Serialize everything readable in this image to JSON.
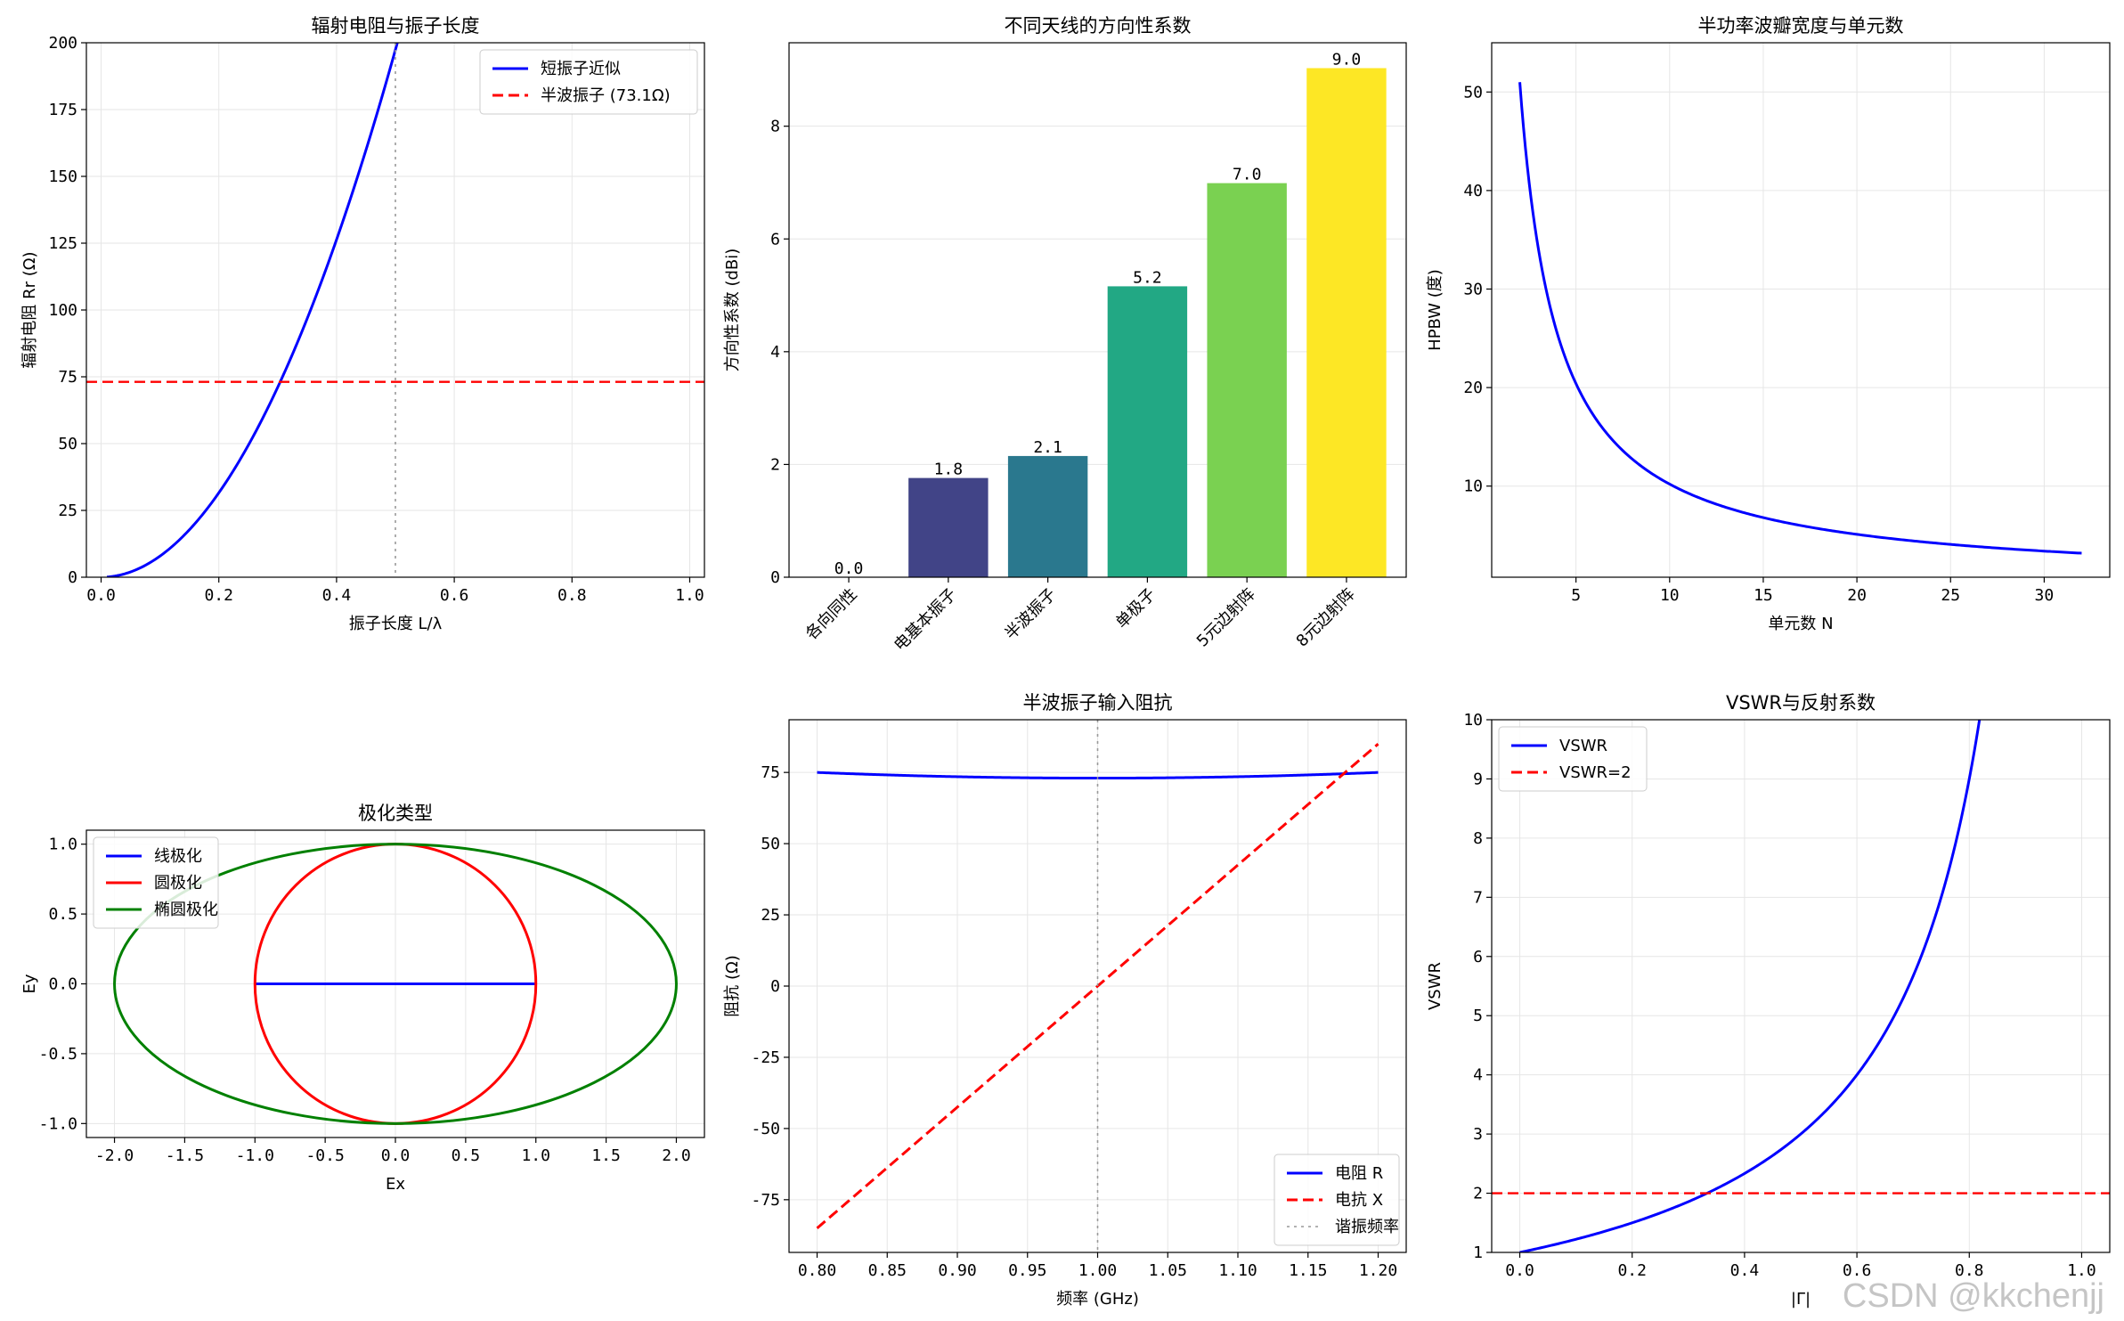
{
  "chart_data": [
    {
      "id": "p1",
      "type": "line",
      "title": "辐射电阻与振子长度",
      "xlabel": "振子长度 L/λ",
      "ylabel": "辐射电阻 Rr (Ω)",
      "xlim": [
        -0.025,
        1.025
      ],
      "ylim": [
        0,
        200
      ],
      "xticks": [
        0.0,
        0.2,
        0.4,
        0.6,
        0.8,
        1.0
      ],
      "xtick_labels": [
        "0.0",
        "0.2",
        "0.4",
        "0.6",
        "0.8",
        "1.0"
      ],
      "yticks": [
        0,
        25,
        50,
        75,
        100,
        125,
        150,
        175,
        200
      ],
      "ytick_labels": [
        "0",
        "25",
        "50",
        "75",
        "100",
        "125",
        "150",
        "175",
        "200"
      ],
      "series": [
        {
          "name": "短振子近似",
          "formula": "80*pi^2*x^2",
          "x_range": [
            0.01,
            1.0
          ],
          "color": "#0000ff",
          "style": "solid"
        },
        {
          "name": "半波振子 (73.1Ω)",
          "hline": 73.1,
          "color": "#ff0000",
          "style": "dashed"
        },
        {
          "name": "",
          "vline": 0.5,
          "color": "#999999",
          "style": "dotted"
        }
      ],
      "legend_position": "upper-right"
    },
    {
      "id": "p2",
      "type": "bar",
      "title": "不同天线的方向性系数",
      "xlabel": "",
      "ylabel": "方向性系数 (dBi)",
      "categories": [
        "各向同性",
        "电基本振子",
        "半波振子",
        "单极子",
        "5元边射阵",
        "8元边射阵"
      ],
      "values": [
        0.0,
        1.76,
        2.15,
        5.16,
        6.99,
        9.03
      ],
      "data_labels": [
        "0.0",
        "1.8",
        "2.1",
        "5.2",
        "7.0",
        "9.0"
      ],
      "colors": [
        "#440154",
        "#414487",
        "#2a788e",
        "#22a884",
        "#7ad151",
        "#fde725"
      ],
      "ylim": [
        0,
        9.48
      ],
      "yticks": [
        0,
        2,
        4,
        6,
        8
      ],
      "ytick_labels": [
        "0",
        "2",
        "4",
        "6",
        "8"
      ]
    },
    {
      "id": "p3",
      "type": "line",
      "title": "半功率波瓣宽度与单元数",
      "xlabel": "单元数 N",
      "ylabel": "HPBW (度)",
      "xlim": [
        0.5,
        33.5
      ],
      "ylim": [
        0.75,
        55.0
      ],
      "xticks": [
        5,
        10,
        15,
        20,
        25,
        30
      ],
      "xtick_labels": [
        "5",
        "10",
        "15",
        "20",
        "25",
        "30"
      ],
      "yticks": [
        10,
        20,
        30,
        40,
        50
      ],
      "ytick_labels": [
        "10",
        "20",
        "30",
        "40",
        "50"
      ],
      "series": [
        {
          "name": "HPBW",
          "formula": "102/N",
          "x_range": [
            2,
            32
          ],
          "color": "#0000ff",
          "style": "solid"
        }
      ]
    },
    {
      "id": "p4",
      "type": "line",
      "title": "极化类型",
      "xlabel": "Ex",
      "ylabel": "Ey",
      "xlim": [
        -2.2,
        2.2
      ],
      "ylim": [
        -1.1,
        1.1
      ],
      "xticks": [
        -2.0,
        -1.5,
        -1.0,
        -0.5,
        0.0,
        0.5,
        1.0,
        1.5,
        2.0
      ],
      "xtick_labels": [
        "-2.0",
        "-1.5",
        "-1.0",
        "-0.5",
        "0.0",
        "0.5",
        "1.0",
        "1.5",
        "2.0"
      ],
      "yticks": [
        -1.0,
        -0.5,
        0.0,
        0.5,
        1.0
      ],
      "ytick_labels": [
        "-1.0",
        "-0.5",
        "0.0",
        "0.5",
        "1.0"
      ],
      "series": [
        {
          "name": "线极化",
          "shape": "segment",
          "x": [
            -1,
            1
          ],
          "y": [
            0,
            0
          ],
          "color": "#0000ff"
        },
        {
          "name": "圆极化",
          "shape": "ellipse",
          "a": 1,
          "b": 1,
          "color": "#ff0000"
        },
        {
          "name": "椭圆极化",
          "shape": "ellipse",
          "a": 2,
          "b": 1,
          "color": "#008000"
        }
      ],
      "legend_position": "upper-left"
    },
    {
      "id": "p5",
      "type": "line",
      "title": "半波振子输入阻抗",
      "xlabel": "频率 (GHz)",
      "ylabel": "阻抗 (Ω)",
      "xlim": [
        0.78,
        1.22
      ],
      "ylim": [
        -93.5,
        93.5
      ],
      "xticks": [
        0.8,
        0.85,
        0.9,
        0.95,
        1.0,
        1.05,
        1.1,
        1.15,
        1.2
      ],
      "xtick_labels": [
        "0.80",
        "0.85",
        "0.90",
        "0.95",
        "1.00",
        "1.05",
        "1.10",
        "1.15",
        "1.20"
      ],
      "yticks": [
        -75,
        -50,
        -25,
        0,
        25,
        50,
        75
      ],
      "ytick_labels": [
        "-75",
        "-50",
        "-25",
        "0",
        "25",
        "50",
        "75"
      ],
      "series": [
        {
          "name": "电阻 R",
          "formula": "73+50*(f-1)^2",
          "x_range": [
            0.8,
            1.2
          ],
          "color": "#0000ff",
          "style": "solid"
        },
        {
          "name": "电抗 X",
          "formula": "425*(f-1)",
          "x_range": [
            0.8,
            1.2
          ],
          "color": "#ff0000",
          "style": "dashed"
        },
        {
          "name": "谐振频率",
          "vline": 1.0,
          "color": "#999999",
          "style": "dotted"
        }
      ],
      "legend_position": "lower-right"
    },
    {
      "id": "p6",
      "type": "line",
      "title": "VSWR与反射系数",
      "xlabel": "|Γ|",
      "ylabel": "VSWR",
      "xlim": [
        -0.05,
        1.05
      ],
      "ylim": [
        1,
        10
      ],
      "xticks": [
        0.0,
        0.2,
        0.4,
        0.6,
        0.8,
        1.0
      ],
      "xtick_labels": [
        "0.0",
        "0.2",
        "0.4",
        "0.6",
        "0.8",
        "1.0"
      ],
      "yticks": [
        1,
        2,
        3,
        4,
        5,
        6,
        7,
        8,
        9,
        10
      ],
      "ytick_labels": [
        "1",
        "2",
        "3",
        "4",
        "5",
        "6",
        "7",
        "8",
        "9",
        "10"
      ],
      "series": [
        {
          "name": "VSWR",
          "formula": "(1+g)/(1-g)",
          "x_range": [
            0,
            0.99
          ],
          "color": "#0000ff",
          "style": "solid"
        },
        {
          "name": "VSWR=2",
          "hline": 2,
          "color": "#ff0000",
          "style": "dashed"
        }
      ],
      "legend_position": "upper-left"
    }
  ],
  "watermark": "CSDN @kkchenjj"
}
